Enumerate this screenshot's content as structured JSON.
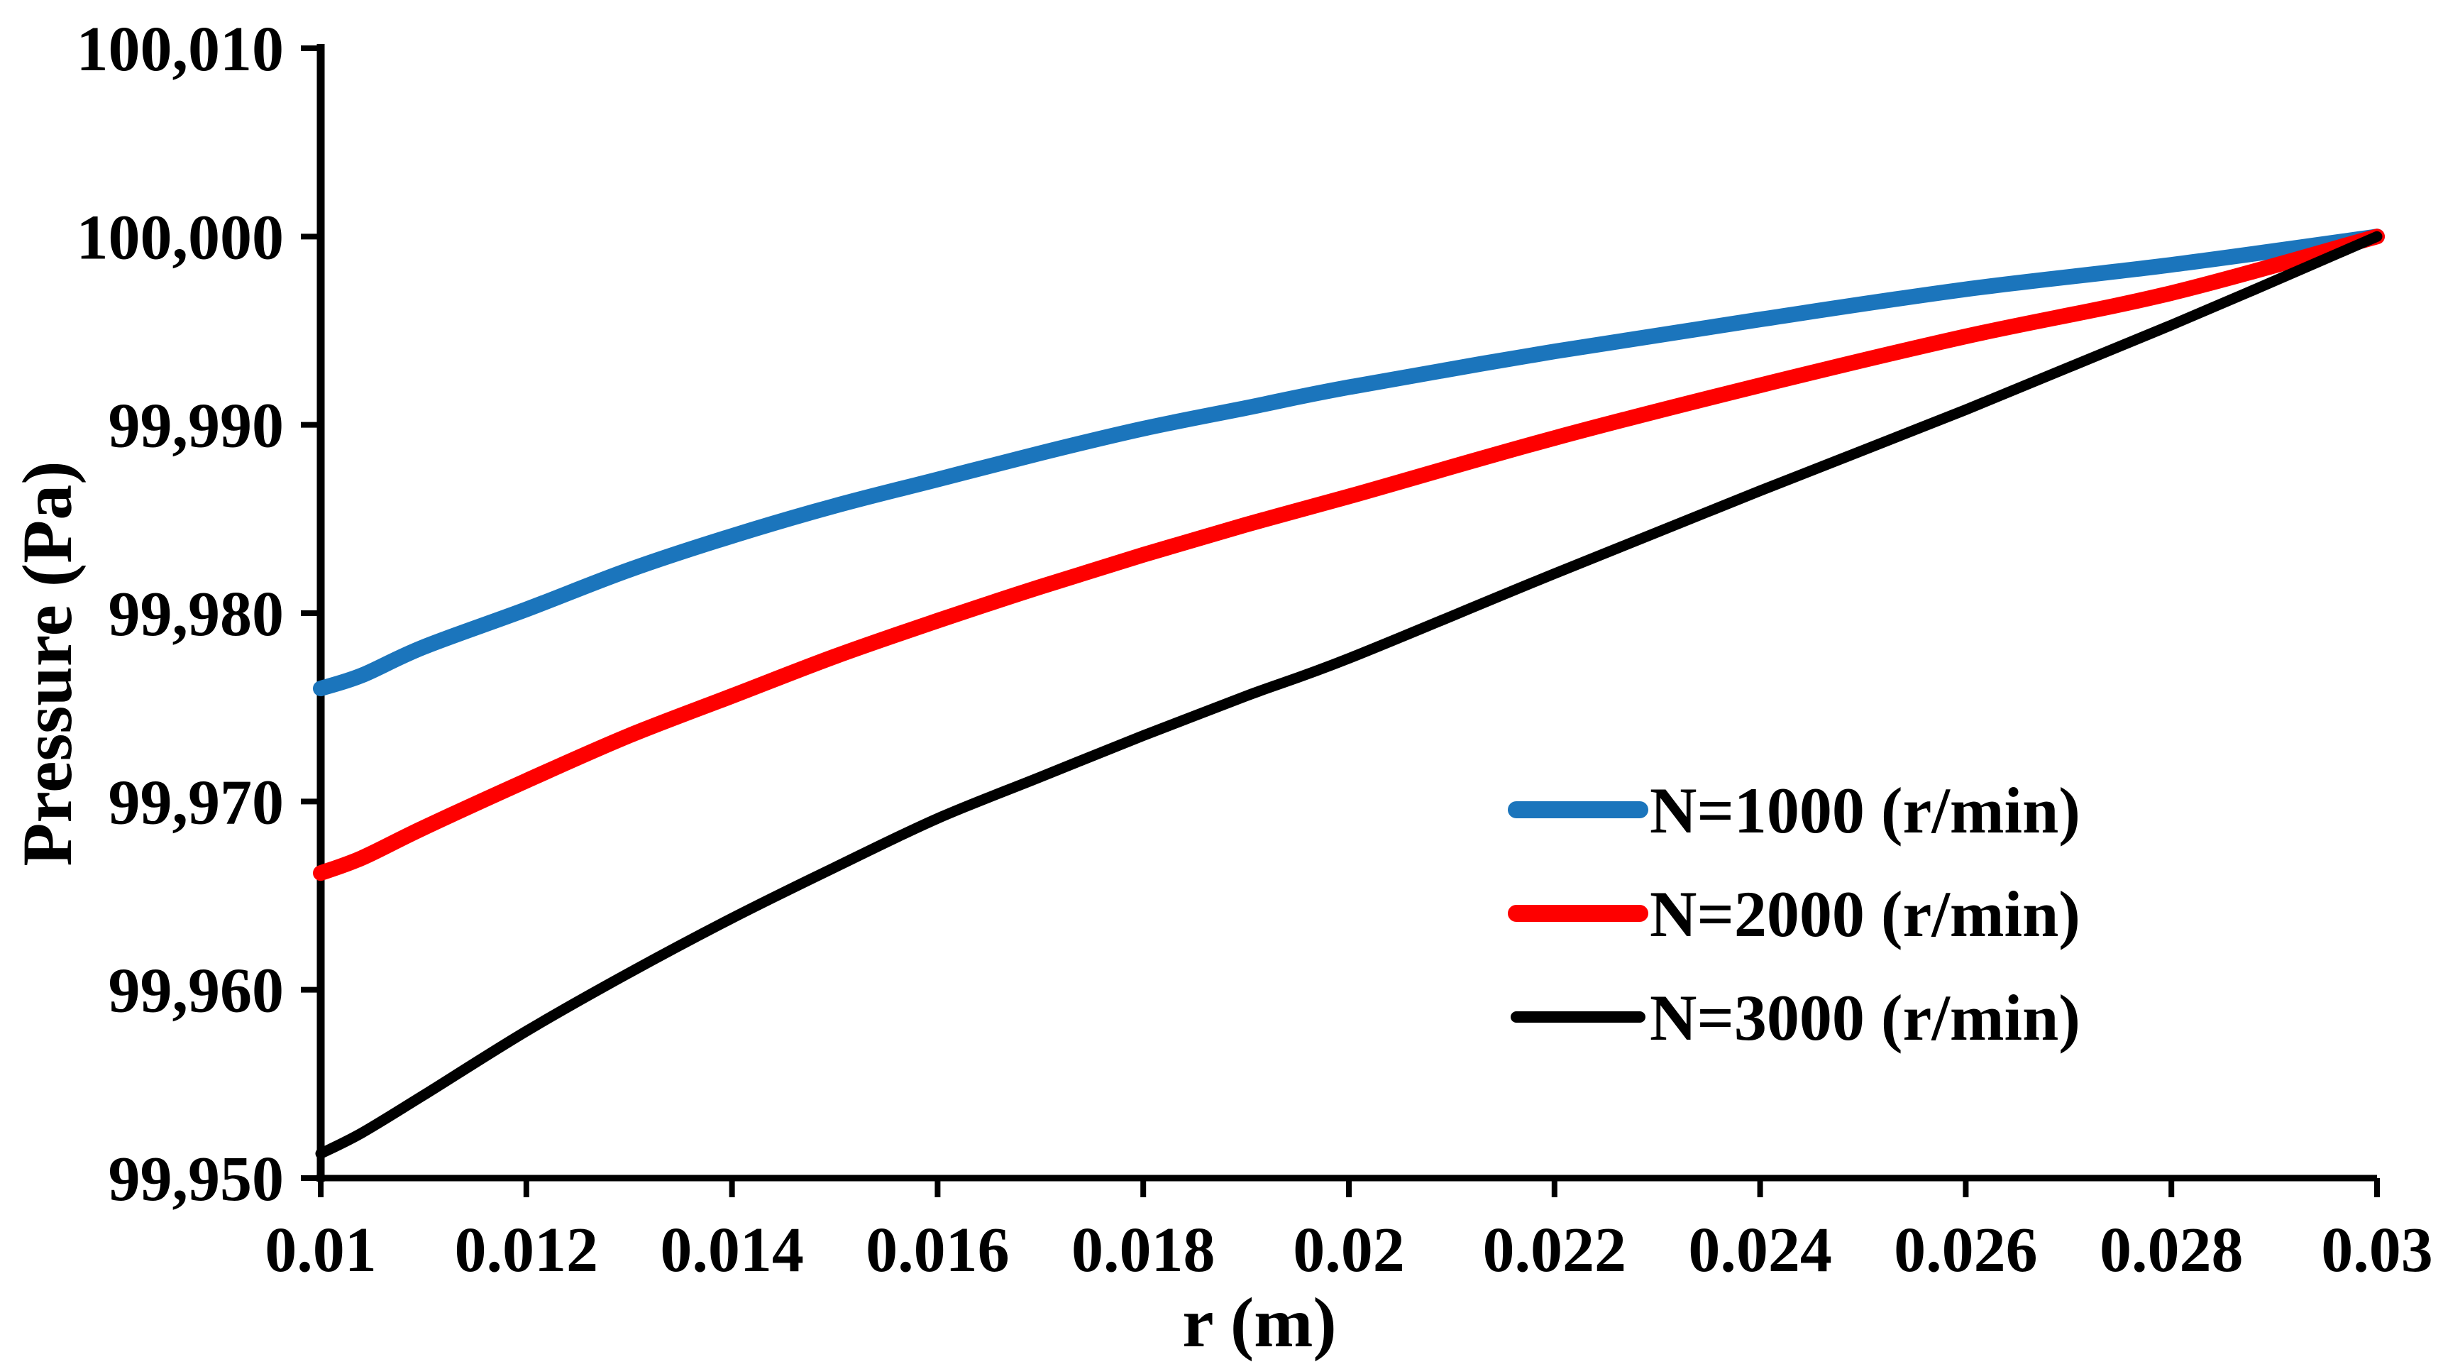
{
  "figure": {
    "background": "#ffffff",
    "axis_color": "#000000"
  },
  "chart_data": {
    "type": "line",
    "title": "",
    "xlabel": "r (m)",
    "ylabel": "Pressure (Pa)",
    "xlim": [
      0.01,
      0.03
    ],
    "ylim": [
      99950,
      100010
    ],
    "grid": false,
    "legend_position": "inside-right-center",
    "x_ticks": [
      0.01,
      0.012,
      0.014,
      0.016,
      0.018,
      0.02,
      0.022,
      0.024,
      0.026,
      0.028,
      0.03
    ],
    "x_tick_labels": [
      "0.01",
      "0.012",
      "0.014",
      "0.016",
      "0.018",
      "0.02",
      "0.022",
      "0.024",
      "0.026",
      "0.028",
      "0.03"
    ],
    "y_ticks": [
      99950,
      99960,
      99970,
      99980,
      99990,
      100000,
      100010
    ],
    "y_tick_labels": [
      "99,950",
      "99,960",
      "99,970",
      "99,980",
      "99,990",
      "100,000",
      "100,010"
    ],
    "series": [
      {
        "name": "N=1000 (r/min)",
        "color": "#1b75bc",
        "line_width": 22,
        "x": [
          0.01,
          0.0104,
          0.011,
          0.012,
          0.013,
          0.014,
          0.015,
          0.016,
          0.017,
          0.018,
          0.019,
          0.02,
          0.022,
          0.024,
          0.026,
          0.028,
          0.03
        ],
        "y": [
          99976.0,
          99976.7,
          99978.2,
          99980.2,
          99982.3,
          99984.1,
          99985.7,
          99987.1,
          99988.5,
          99989.8,
          99990.9,
          99992.0,
          99993.9,
          99995.6,
          99997.2,
          99998.5,
          100000.0
        ]
      },
      {
        "name": "N=2000 (r/min)",
        "color": "#fe0000",
        "line_width": 22,
        "x": [
          0.01,
          0.0104,
          0.011,
          0.012,
          0.013,
          0.014,
          0.015,
          0.016,
          0.017,
          0.018,
          0.019,
          0.02,
          0.022,
          0.024,
          0.026,
          0.028,
          0.03
        ],
        "y": [
          99966.2,
          99967.0,
          99968.6,
          99971.1,
          99973.5,
          99975.6,
          99977.7,
          99979.6,
          99981.4,
          99983.1,
          99984.7,
          99986.2,
          99989.3,
          99992.1,
          99994.7,
          99997.0,
          100000.0
        ]
      },
      {
        "name": "N=3000 (r/min)",
        "color": "#000000",
        "line_width": 15,
        "x": [
          0.01,
          0.0104,
          0.011,
          0.012,
          0.013,
          0.014,
          0.015,
          0.016,
          0.017,
          0.018,
          0.019,
          0.02,
          0.022,
          0.024,
          0.026,
          0.028,
          0.03
        ],
        "y": [
          99951.3,
          99952.4,
          99954.4,
          99957.8,
          99960.9,
          99963.8,
          99966.5,
          99969.1,
          99971.3,
          99973.5,
          99975.6,
          99977.6,
          99982.1,
          99986.5,
          99990.8,
          99995.3,
          100000.0
        ]
      }
    ]
  }
}
